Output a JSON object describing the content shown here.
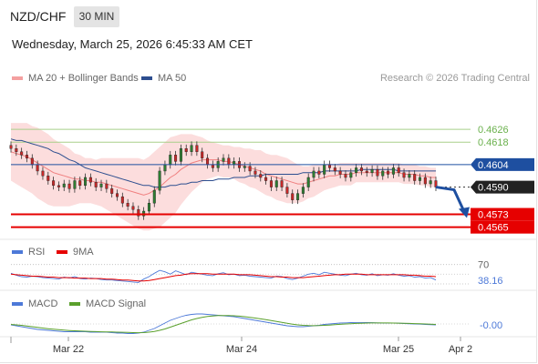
{
  "header": {
    "pair": "NZD/CHF",
    "timeframe": "30 MIN",
    "datetime": "Wednesday, March 25, 2026 6:45:33 AM CET"
  },
  "legend": {
    "ma": "MA 20 + Bollinger Bands",
    "ma50": "MA 50",
    "credit": "Research © 2026 Trading Central"
  },
  "colors": {
    "ma20": "#f08080",
    "ma50": "#2d4e8f",
    "band": "#fbd2d2",
    "pivot": "#1e4fa0",
    "support": "#e60000",
    "resistance": "#6ab04c",
    "candle_up": "#2e7d32",
    "candle_down": "#c62828"
  },
  "chart_data": [
    {
      "type": "candlestick",
      "title": "NZD/CHF 30 MIN",
      "ylim": [
        0.4558,
        0.4634
      ],
      "xticks": [
        "Mar 22",
        "Mar 24",
        "Mar 25",
        "Apr 2"
      ],
      "levels": [
        {
          "value": 0.4626,
          "label": "0.4626",
          "kind": "resistance"
        },
        {
          "value": 0.4618,
          "label": "0.4618",
          "kind": "resistance"
        },
        {
          "value": 0.4604,
          "label": "0.4604",
          "kind": "pivot"
        },
        {
          "value": 0.459,
          "label": "0.4590",
          "kind": "last"
        },
        {
          "value": 0.4573,
          "label": "0.4573",
          "kind": "support"
        },
        {
          "value": 0.4565,
          "label": "0.4565",
          "kind": "support"
        }
      ],
      "closes": [
        0.4614,
        0.4612,
        0.461,
        0.4608,
        0.4604,
        0.46,
        0.4597,
        0.4594,
        0.4591,
        0.459,
        0.4592,
        0.4589,
        0.4594,
        0.4591,
        0.4596,
        0.4593,
        0.459,
        0.4592,
        0.4589,
        0.4586,
        0.4584,
        0.458,
        0.4578,
        0.4576,
        0.4572,
        0.4575,
        0.458,
        0.4588,
        0.46,
        0.4604,
        0.461,
        0.4606,
        0.4614,
        0.4612,
        0.4616,
        0.4612,
        0.4608,
        0.4604,
        0.4602,
        0.4606,
        0.4608,
        0.4604,
        0.4606,
        0.4602,
        0.4603,
        0.46,
        0.4598,
        0.4596,
        0.4594,
        0.459,
        0.4594,
        0.459,
        0.4586,
        0.4582,
        0.4586,
        0.459,
        0.4596,
        0.46,
        0.4598,
        0.4604,
        0.4602,
        0.46,
        0.4598,
        0.4596,
        0.4599,
        0.4602,
        0.46,
        0.4599,
        0.4601,
        0.4597,
        0.46,
        0.4598,
        0.4602,
        0.4599,
        0.4596,
        0.4598,
        0.4594,
        0.4596,
        0.4592,
        0.4594,
        0.459
      ],
      "ma20": [
        0.4612,
        0.4611,
        0.461,
        0.4609,
        0.4607,
        0.4605,
        0.4603,
        0.4601,
        0.4599,
        0.4598,
        0.4597,
        0.4596,
        0.4595,
        0.4595,
        0.4594,
        0.4594,
        0.4593,
        0.4593,
        0.4592,
        0.4591,
        0.459,
        0.4589,
        0.4588,
        0.4587,
        0.4586,
        0.4585,
        0.4586,
        0.4588,
        0.459,
        0.4593,
        0.4596,
        0.4598,
        0.4601,
        0.4603,
        0.4605,
        0.4606,
        0.4607,
        0.4607,
        0.4607,
        0.4607,
        0.4606,
        0.4606,
        0.4605,
        0.4604,
        0.4603,
        0.4602,
        0.4601,
        0.46,
        0.4598,
        0.4597,
        0.4596,
        0.4595,
        0.4594,
        0.4593,
        0.4592,
        0.4592,
        0.4593,
        0.4594,
        0.4595,
        0.4596,
        0.4597,
        0.4597,
        0.4598,
        0.4598,
        0.4598,
        0.4599,
        0.4599,
        0.4599,
        0.4599,
        0.4599,
        0.4599,
        0.4599,
        0.4599,
        0.4599,
        0.4598,
        0.4598,
        0.4598,
        0.4597,
        0.4597,
        0.4596,
        0.4596
      ],
      "ma50": [
        0.462,
        0.4619,
        0.4619,
        0.4618,
        0.4617,
        0.4616,
        0.4615,
        0.4614,
        0.4612,
        0.4611,
        0.4609,
        0.4607,
        0.4606,
        0.4604,
        0.4602,
        0.4601,
        0.46,
        0.4599,
        0.4598,
        0.4597,
        0.4596,
        0.4595,
        0.4594,
        0.4593,
        0.4592,
        0.4591,
        0.4591,
        0.459,
        0.459,
        0.459,
        0.4591,
        0.4591,
        0.4592,
        0.4592,
        0.4593,
        0.4593,
        0.4594,
        0.4594,
        0.4594,
        0.4595,
        0.4595,
        0.4595,
        0.4596,
        0.4596,
        0.4596,
        0.4597,
        0.4597,
        0.4597,
        0.4598,
        0.4598,
        0.4598,
        0.4598,
        0.4598,
        0.4598,
        0.4598,
        0.4599,
        0.4599,
        0.4599,
        0.4599,
        0.46,
        0.46,
        0.46,
        0.46,
        0.46,
        0.46,
        0.46,
        0.4601,
        0.4601,
        0.4601,
        0.4601,
        0.4601,
        0.4601,
        0.4601,
        0.46,
        0.46,
        0.46,
        0.46,
        0.46,
        0.46,
        0.46,
        0.46
      ],
      "band_width": [
        0.0018,
        0.0019,
        0.002,
        0.0021,
        0.0021,
        0.0022,
        0.0022,
        0.0022,
        0.0021,
        0.002,
        0.0019,
        0.0018,
        0.0016,
        0.0015,
        0.0014,
        0.0014,
        0.0014,
        0.0015,
        0.0016,
        0.0017,
        0.0018,
        0.0019,
        0.002,
        0.0021,
        0.0022,
        0.0022,
        0.0023,
        0.0024,
        0.0025,
        0.0025,
        0.0025,
        0.0024,
        0.0022,
        0.002,
        0.0018,
        0.0016,
        0.0014,
        0.0012,
        0.0011,
        0.001,
        0.001,
        0.001,
        0.001,
        0.0011,
        0.0011,
        0.0012,
        0.0012,
        0.0013,
        0.0013,
        0.0013,
        0.0014,
        0.0014,
        0.0014,
        0.0013,
        0.0012,
        0.0011,
        0.001,
        0.001,
        0.0009,
        0.0008,
        0.0008,
        0.0007,
        0.0007,
        0.0007,
        0.0007,
        0.0006,
        0.0006,
        0.0006,
        0.0006,
        0.0006,
        0.0006,
        0.0006,
        0.0006,
        0.0006,
        0.0006,
        0.0006,
        0.0006,
        0.0006,
        0.0006,
        0.0006,
        0.0006
      ],
      "projection": [
        0.459,
        0.4573
      ]
    },
    {
      "type": "line",
      "title": "RSI",
      "series_names": [
        "RSI",
        "9MA"
      ],
      "level_label": "70",
      "value_label": "38.16",
      "ylim": [
        30,
        75
      ],
      "rsi": [
        52,
        48,
        45,
        44,
        46,
        45,
        43,
        42,
        41,
        40,
        44,
        42,
        45,
        41,
        40,
        42,
        41,
        39,
        38,
        38,
        37,
        36,
        35,
        34,
        33,
        40,
        45,
        52,
        58,
        55,
        50,
        57,
        53,
        49,
        54,
        52,
        50,
        48,
        47,
        51,
        53,
        49,
        50,
        47,
        48,
        46,
        45,
        44,
        43,
        42,
        46,
        45,
        41,
        39,
        42,
        46,
        50,
        52,
        49,
        54,
        52,
        50,
        48,
        47,
        50,
        52,
        49,
        48,
        51,
        47,
        49,
        48,
        51,
        48,
        46,
        47,
        44,
        45,
        42,
        43,
        38
      ],
      "ma9": [
        50,
        49,
        48,
        47,
        46,
        46,
        45,
        44,
        44,
        43,
        43,
        43,
        42,
        42,
        42,
        41,
        41,
        41,
        40,
        40,
        39,
        38,
        38,
        37,
        36,
        36,
        37,
        39,
        41,
        43,
        45,
        47,
        48,
        50,
        51,
        51,
        51,
        51,
        50,
        50,
        50,
        50,
        50,
        49,
        49,
        49,
        48,
        47,
        46,
        45,
        45,
        44,
        44,
        43,
        43,
        43,
        44,
        45,
        46,
        47,
        48,
        49,
        49,
        50,
        50,
        50,
        50,
        49,
        49,
        49,
        49,
        49,
        49,
        49,
        49,
        48,
        48,
        47,
        46,
        46,
        45
      ]
    },
    {
      "type": "line",
      "title": "MACD",
      "series_names": [
        "MACD",
        "MACD Signal"
      ],
      "value_label": "-0.00",
      "ylim": [
        -1.2,
        1.6
      ],
      "macd": [
        -0.1,
        -0.2,
        -0.3,
        -0.4,
        -0.5,
        -0.6,
        -0.65,
        -0.7,
        -0.75,
        -0.8,
        -0.85,
        -0.85,
        -0.85,
        -0.85,
        -0.85,
        -0.9,
        -0.9,
        -0.9,
        -0.9,
        -0.95,
        -1.0,
        -1.0,
        -1.05,
        -1.05,
        -1.0,
        -0.9,
        -0.7,
        -0.5,
        -0.2,
        0.1,
        0.4,
        0.6,
        0.8,
        0.95,
        1.05,
        1.1,
        1.1,
        1.05,
        1.0,
        0.95,
        0.9,
        0.85,
        0.8,
        0.7,
        0.6,
        0.5,
        0.4,
        0.3,
        0.2,
        0.1,
        0.0,
        -0.1,
        -0.2,
        -0.25,
        -0.3,
        -0.3,
        -0.25,
        -0.2,
        -0.15,
        -0.05,
        0.0,
        0.05,
        0.1,
        0.12,
        0.15,
        0.16,
        0.16,
        0.15,
        0.14,
        0.12,
        0.1,
        0.1,
        0.1,
        0.08,
        0.05,
        0.02,
        0.0,
        -0.02,
        -0.05,
        -0.08,
        -0.1
      ],
      "signal": [
        -0.05,
        -0.1,
        -0.15,
        -0.22,
        -0.3,
        -0.38,
        -0.45,
        -0.52,
        -0.58,
        -0.63,
        -0.68,
        -0.72,
        -0.75,
        -0.78,
        -0.8,
        -0.82,
        -0.84,
        -0.86,
        -0.87,
        -0.88,
        -0.9,
        -0.91,
        -0.93,
        -0.95,
        -0.96,
        -0.95,
        -0.9,
        -0.82,
        -0.7,
        -0.55,
        -0.35,
        -0.15,
        0.05,
        0.25,
        0.45,
        0.6,
        0.72,
        0.82,
        0.88,
        0.92,
        0.93,
        0.92,
        0.9,
        0.86,
        0.8,
        0.73,
        0.65,
        0.56,
        0.47,
        0.37,
        0.27,
        0.17,
        0.07,
        -0.02,
        -0.1,
        -0.15,
        -0.18,
        -0.19,
        -0.18,
        -0.15,
        -0.12,
        -0.08,
        -0.04,
        0.0,
        0.03,
        0.06,
        0.08,
        0.1,
        0.11,
        0.11,
        0.11,
        0.11,
        0.1,
        0.09,
        0.08,
        0.06,
        0.04,
        0.02,
        0.0,
        -0.02,
        -0.05
      ]
    }
  ]
}
